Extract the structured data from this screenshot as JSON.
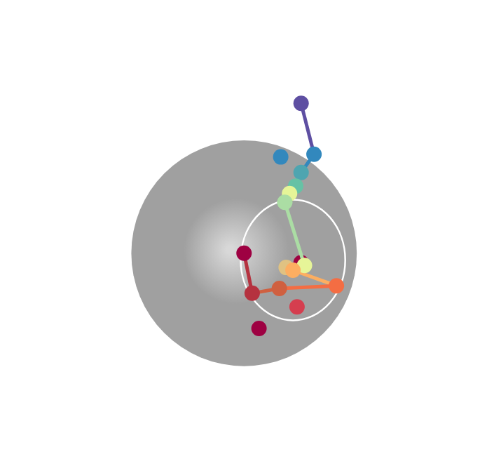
{
  "chart_data": {
    "type": "scatter",
    "tick_labels": false,
    "grid": false,
    "xlim": [
      0,
      715
    ],
    "ylim": [
      0,
      654
    ],
    "sphere": {
      "x": 348,
      "y": 292,
      "r": 166,
      "color": "#a0a0a0"
    },
    "ring": {
      "x": 420,
      "y": 282,
      "rx": 77,
      "ry": 89,
      "color": "#ffffff"
    },
    "series": [
      {
        "line_style": "solid",
        "marker": "circle",
        "x": [
          432,
          451,
          432,
          424,
          415,
          408,
          437,
          410,
          420,
          484,
          400,
          360,
          348
        ],
        "y": [
          513,
          438,
          411,
          391,
          380,
          367,
          274,
          271,
          267,
          244,
          240,
          233,
          292
        ],
        "colors": [
          "#5e4fa2",
          "#3288bd",
          "#4ea5b0",
          "#66c2a5",
          "#e6f598",
          "#abdda4",
          "#e6f598",
          "#e0c282",
          "#fdae61",
          "#f46d43",
          "#d06040",
          "#b5323f",
          "#9e0142"
        ]
      },
      {
        "line_style": "none",
        "marker": "circle",
        "x": [
          402,
          426,
          370,
          432
        ],
        "y": [
          434,
          213,
          181,
          278
        ],
        "colors": [
          "#3288bd",
          "#d53e4f",
          "#9e0142",
          "#9e0142"
        ]
      }
    ]
  }
}
